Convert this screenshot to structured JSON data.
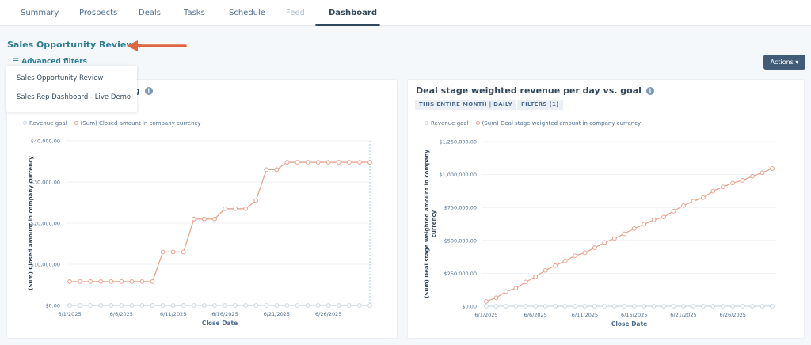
{
  "tabs": [
    {
      "label": "Summary"
    },
    {
      "label": "Prospects"
    },
    {
      "label": "Deals"
    },
    {
      "label": "Tasks"
    },
    {
      "label": "Schedule"
    },
    {
      "label": "Feed"
    },
    {
      "label": "Dashboard",
      "active": true
    }
  ],
  "dashboard": {
    "title": "Sales Opportunity Review",
    "advanced_filters": "Advanced filters",
    "actions_label": "Actions ▾",
    "accent": "#2f7e96",
    "arrow_color": "#e0663f"
  },
  "dropdown": {
    "items": [
      {
        "label": "Sales Opportunity Review"
      },
      {
        "label": "Sales Rep Dashboard - Live Demo"
      }
    ]
  },
  "cards": [
    {
      "title_visible": "g",
      "legend": [
        "Revenue goal",
        "(Sum) Closed amount in company currency"
      ]
    },
    {
      "title": "Deal stage weighted revenue per day vs. goal",
      "chips": [
        "THIS ENTIRE MONTH | DAILY",
        "FILTERS (1)"
      ],
      "legend": [
        "Revenue goal",
        "(Sum) Deal stage weighted amount in company currency"
      ]
    }
  ],
  "chart_data": [
    {
      "type": "line",
      "xlabel": "Close Date",
      "ylabel": "(Sum) Closed amount in company currency",
      "x": [
        "6/1/2025",
        "6/2/2025",
        "6/3/2025",
        "6/4/2025",
        "6/5/2025",
        "6/6/2025",
        "6/7/2025",
        "6/8/2025",
        "6/9/2025",
        "6/10/2025",
        "6/11/2025",
        "6/12/2025",
        "6/13/2025",
        "6/14/2025",
        "6/15/2025",
        "6/16/2025",
        "6/17/2025",
        "6/18/2025",
        "6/19/2025",
        "6/20/2025",
        "6/21/2025",
        "6/22/2025",
        "6/23/2025",
        "6/24/2025",
        "6/25/2025",
        "6/26/2025",
        "6/27/2025",
        "6/28/2025",
        "6/29/2025",
        "6/30/2025"
      ],
      "xticks": [
        "6/1/2025",
        "6/6/2025",
        "6/11/2025",
        "6/16/2025",
        "6/21/2025",
        "6/26/2025"
      ],
      "yticks": [
        "$0.00",
        "$10,000.00",
        "$20,000.00",
        "$30,000.00",
        "$40,000.00"
      ],
      "ylim": [
        0,
        40000
      ],
      "grid": true,
      "series": [
        {
          "name": "Revenue goal",
          "color": "#cbd6e2",
          "values": [
            0,
            0,
            0,
            0,
            0,
            0,
            0,
            0,
            0,
            0,
            0,
            0,
            0,
            0,
            0,
            0,
            0,
            0,
            0,
            0,
            0,
            0,
            0,
            0,
            0,
            0,
            0,
            0,
            0,
            0
          ]
        },
        {
          "name": "(Sum) Closed amount in company currency",
          "color": "#e4a590",
          "values": [
            5800,
            5800,
            5800,
            5800,
            5800,
            5800,
            5800,
            5800,
            5800,
            13000,
            13000,
            13000,
            21000,
            21000,
            21000,
            23500,
            23500,
            23500,
            25500,
            33000,
            33000,
            34800,
            34800,
            34800,
            34800,
            34800,
            34800,
            34800,
            34800,
            34800
          ]
        }
      ]
    },
    {
      "type": "line",
      "xlabel": "Close Date",
      "ylabel": "(Sum) Deal stage weighted amount in company currency",
      "x": [
        "6/1/2025",
        "6/2/2025",
        "6/3/2025",
        "6/4/2025",
        "6/5/2025",
        "6/6/2025",
        "6/7/2025",
        "6/8/2025",
        "6/9/2025",
        "6/10/2025",
        "6/11/2025",
        "6/12/2025",
        "6/13/2025",
        "6/14/2025",
        "6/15/2025",
        "6/16/2025",
        "6/17/2025",
        "6/18/2025",
        "6/19/2025",
        "6/20/2025",
        "6/21/2025",
        "6/22/2025",
        "6/23/2025",
        "6/24/2025",
        "6/25/2025",
        "6/26/2025",
        "6/27/2025",
        "6/28/2025",
        "6/29/2025",
        "6/30/2025"
      ],
      "xticks": [
        "6/1/2025",
        "6/6/2025",
        "6/11/2025",
        "6/16/2025",
        "6/21/2025",
        "6/26/2025"
      ],
      "yticks": [
        "$0.00",
        "$250,000.00",
        "$500,000.00",
        "$750,000.00",
        "$1,000,000.00",
        "$1,250,000.00"
      ],
      "ylim": [
        0,
        1250000
      ],
      "grid": true,
      "series": [
        {
          "name": "Revenue goal",
          "color": "#cbd6e2",
          "values": [
            0,
            0,
            0,
            0,
            0,
            0,
            0,
            0,
            0,
            0,
            0,
            0,
            0,
            0,
            0,
            0,
            0,
            0,
            0,
            0,
            0,
            0,
            0,
            0,
            0,
            0,
            0,
            0,
            0,
            0
          ]
        },
        {
          "name": "(Sum) Deal stage weighted amount in company currency",
          "color": "#e4a590",
          "values": [
            36000,
            64000,
            112000,
            136000,
            184000,
            224000,
            272000,
            308000,
            344000,
            384000,
            406000,
            444000,
            484000,
            514000,
            550000,
            590000,
            622000,
            656000,
            678000,
            722000,
            764000,
            798000,
            824000,
            874000,
            906000,
            936000,
            956000,
            988000,
            1014000,
            1046000
          ]
        }
      ]
    }
  ]
}
